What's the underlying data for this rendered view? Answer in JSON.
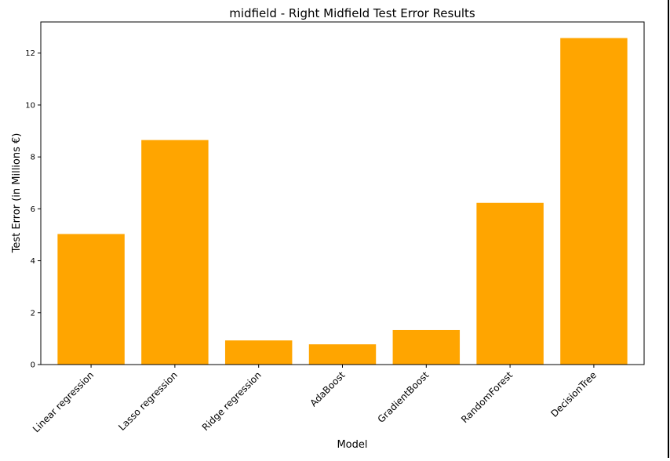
{
  "chart_data": {
    "type": "bar",
    "title": "midfield - Right Midfield Test Error Results",
    "xlabel": "Model",
    "ylabel": "Test Error (in Millions €)",
    "categories": [
      "Linear regression",
      "Lasso regression",
      "Ridge regression",
      "AdaBoost",
      "GradientBoost",
      "RandomForest",
      "DecisionTree"
    ],
    "values": [
      5.03,
      8.65,
      0.93,
      0.78,
      1.33,
      6.23,
      12.58
    ],
    "ylim": [
      0,
      13.2
    ],
    "yticks": [
      "0",
      "2",
      "4",
      "6",
      "8",
      "10",
      "12"
    ],
    "grid": false,
    "legend": "none",
    "bar_color": "#ffa500"
  }
}
